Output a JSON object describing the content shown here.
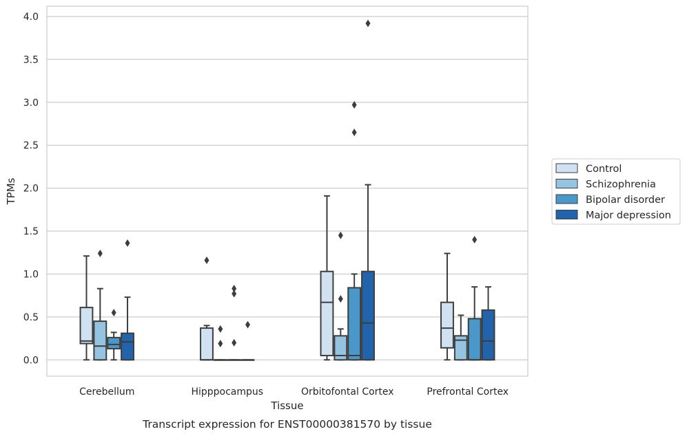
{
  "caption": "Transcript expression for ENST00000381570 by tissue",
  "chart_data": {
    "type": "box",
    "xlabel": "Tissue",
    "ylabel": "TPMs",
    "ylim": [
      -0.19,
      4.12
    ],
    "yticks": [
      0.0,
      0.5,
      1.0,
      1.5,
      2.0,
      2.5,
      3.0,
      3.5,
      4.0
    ],
    "ytick_labels": [
      "0.0",
      "0.5",
      "1.0",
      "1.5",
      "2.0",
      "2.5",
      "3.0",
      "3.5",
      "4.0"
    ],
    "grid": true,
    "legend_position": "right",
    "categories": [
      "Cerebellum",
      "Hipppocampus",
      "Orbitofontal Cortex",
      "Prefrontal Cortex"
    ],
    "series": [
      {
        "name": "Control",
        "color": "#d0e1f2",
        "boxes": [
          {
            "whisker_low": 0.0,
            "q1": 0.19,
            "median": 0.22,
            "q3": 0.61,
            "whisker_high": 1.21,
            "outliers": []
          },
          {
            "whisker_low": 0.0,
            "q1": 0.0,
            "median": 0.0,
            "q3": 0.37,
            "whisker_high": 0.4,
            "outliers": [
              1.16
            ]
          },
          {
            "whisker_low": 0.0,
            "q1": 0.05,
            "median": 0.67,
            "q3": 1.03,
            "whisker_high": 1.91,
            "outliers": []
          },
          {
            "whisker_low": 0.0,
            "q1": 0.14,
            "median": 0.37,
            "q3": 0.67,
            "whisker_high": 1.24,
            "outliers": []
          }
        ]
      },
      {
        "name": "Schizophrenia",
        "color": "#94c4df",
        "boxes": [
          {
            "whisker_low": 0.0,
            "q1": 0.0,
            "median": 0.16,
            "q3": 0.45,
            "whisker_high": 0.83,
            "outliers": [
              1.24
            ]
          },
          {
            "whisker_low": 0.0,
            "q1": 0.0,
            "median": 0.0,
            "q3": 0.0,
            "whisker_high": 0.0,
            "outliers": [
              0.19,
              0.36
            ]
          },
          {
            "whisker_low": 0.0,
            "q1": 0.0,
            "median": 0.05,
            "q3": 0.28,
            "whisker_high": 0.36,
            "outliers": [
              0.71,
              1.45
            ]
          },
          {
            "whisker_low": 0.0,
            "q1": 0.0,
            "median": 0.23,
            "q3": 0.28,
            "whisker_high": 0.52,
            "outliers": []
          }
        ]
      },
      {
        "name": "Bipolar disorder",
        "color": "#4a98c9",
        "boxes": [
          {
            "whisker_low": 0.0,
            "q1": 0.13,
            "median": 0.18,
            "q3": 0.26,
            "whisker_high": 0.32,
            "outliers": [
              0.55
            ]
          },
          {
            "whisker_low": 0.0,
            "q1": 0.0,
            "median": 0.0,
            "q3": 0.0,
            "whisker_high": 0.0,
            "outliers": [
              0.2,
              0.77,
              0.83
            ]
          },
          {
            "whisker_low": 0.0,
            "q1": 0.0,
            "median": 0.05,
            "q3": 0.84,
            "whisker_high": 1.0,
            "outliers": [
              2.65,
              2.97
            ]
          },
          {
            "whisker_low": 0.0,
            "q1": 0.0,
            "median": 0.0,
            "q3": 0.48,
            "whisker_high": 0.85,
            "outliers": [
              1.4
            ]
          }
        ]
      },
      {
        "name": "Major depression",
        "color": "#2164ab",
        "boxes": [
          {
            "whisker_low": 0.0,
            "q1": 0.0,
            "median": 0.21,
            "q3": 0.31,
            "whisker_high": 0.73,
            "outliers": [
              1.36
            ]
          },
          {
            "whisker_low": 0.0,
            "q1": 0.0,
            "median": 0.0,
            "q3": 0.0,
            "whisker_high": 0.0,
            "outliers": [
              0.41
            ]
          },
          {
            "whisker_low": 0.0,
            "q1": 0.0,
            "median": 0.43,
            "q3": 1.03,
            "whisker_high": 2.04,
            "outliers": [
              3.92
            ]
          },
          {
            "whisker_low": 0.0,
            "q1": 0.0,
            "median": 0.22,
            "q3": 0.58,
            "whisker_high": 0.85,
            "outliers": []
          }
        ]
      }
    ]
  }
}
